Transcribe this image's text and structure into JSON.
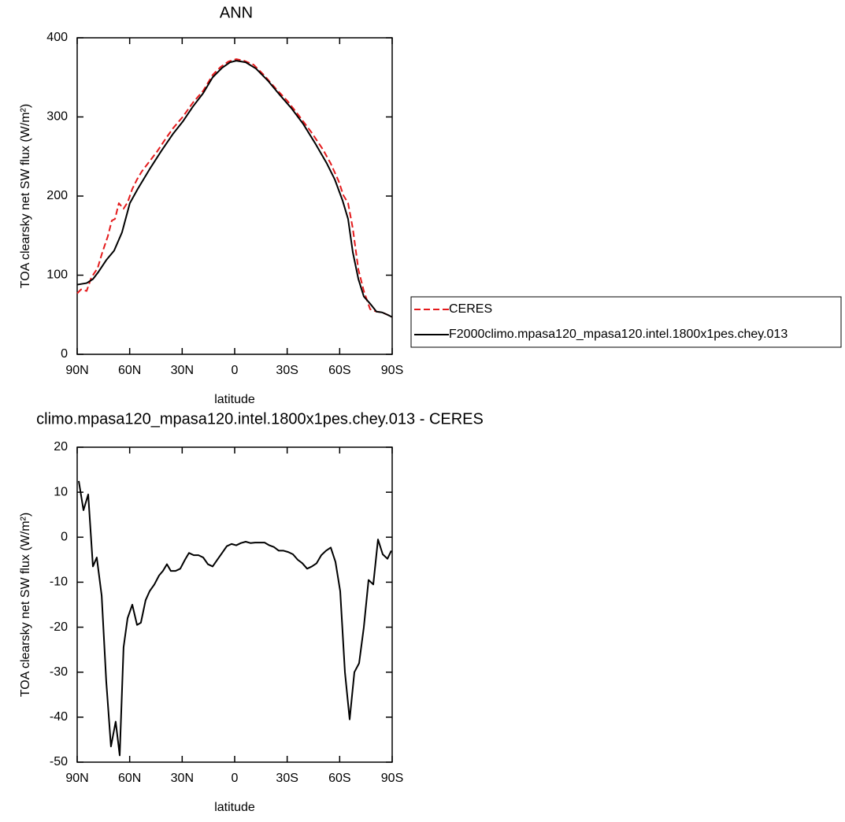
{
  "chart_data": [
    {
      "type": "line",
      "title": "ANN",
      "x_label": "latitude",
      "y_label": "TOA clearsky net SW flux (W/m²)",
      "xlim": [
        90,
        -90
      ],
      "ylim": [
        0,
        400
      ],
      "xticks": [
        {
          "value": 90,
          "label": "90N"
        },
        {
          "value": 60,
          "label": "60N"
        },
        {
          "value": 30,
          "label": "30N"
        },
        0,
        {
          "value": -30,
          "label": "30S"
        },
        {
          "value": -60,
          "label": "60S"
        },
        {
          "value": -90,
          "label": "90S"
        }
      ],
      "yticks": [
        0,
        100,
        200,
        300,
        400
      ],
      "legend_position": "right",
      "series": [
        {
          "name": "CERES",
          "color": "#e41a1c",
          "dashed": true,
          "x": [
            90,
            87.8,
            84.6,
            81.9,
            78.3,
            75.6,
            72.5,
            70.2,
            68.4,
            66.2,
            63.5,
            61.2,
            58.5,
            55.8,
            53.1,
            48.6,
            44.1,
            39.6,
            35.1,
            29.7,
            23.9,
            18,
            12.6,
            8.1,
            3.6,
            -0.9,
            -5.4,
            -10.8,
            -16.7,
            -23.4,
            -30.2,
            -36.9,
            -43.7,
            -50.4,
            -54.9,
            -59.4,
            -62.1,
            -64.8,
            -67.5,
            -70.7,
            -73.8,
            -77.4,
            -81,
            -84.2,
            -87.3,
            -90
          ],
          "values": [
            77,
            82,
            80,
            97,
            109,
            129,
            149,
            169,
            171,
            191,
            184,
            192,
            209,
            221,
            231,
            244,
            257,
            272,
            286,
            300,
            318,
            333,
            353,
            363,
            370,
            373,
            371,
            366,
            353,
            336,
            320,
            301,
            281,
            259,
            241,
            219,
            201,
            191,
            159,
            107,
            80,
            57,
            54,
            53,
            50,
            47
          ]
        },
        {
          "name": "F2000climo.mpasa120_mpasa120.intel.1800x1pes.chey.013",
          "color": "#000000",
          "dashed": false,
          "x": [
            90,
            84.6,
            81,
            77.9,
            73.4,
            68.9,
            64.4,
            59.9,
            55.4,
            48.6,
            41.9,
            35.1,
            29.7,
            23.9,
            18,
            12.6,
            7.2,
            2.7,
            -0.9,
            -6.3,
            -12.2,
            -18.9,
            -25.7,
            -32.4,
            -39.2,
            -45.9,
            -52.7,
            -57.2,
            -61.7,
            -64.8,
            -67.5,
            -70.7,
            -73.8,
            -77.4,
            -81,
            -84.2,
            -87.3,
            -90
          ],
          "values": [
            88,
            90,
            95,
            104,
            119,
            131,
            154,
            191,
            209,
            234,
            257,
            279,
            294,
            313,
            330,
            350,
            362,
            369,
            371,
            369,
            361,
            346,
            328,
            311,
            291,
            267,
            241,
            221,
            194,
            171,
            129,
            95,
            73,
            64,
            54,
            53,
            50,
            47
          ]
        }
      ]
    },
    {
      "type": "line",
      "title": "climo.mpasa120_mpasa120.intel.1800x1pes.chey.013 - CERES",
      "x_label": "latitude",
      "y_label": "TOA clearsky net SW flux (W/m²)",
      "xlim": [
        90,
        -90
      ],
      "ylim": [
        -50,
        20
      ],
      "xticks": [
        {
          "value": 90,
          "label": "90N"
        },
        {
          "value": 60,
          "label": "60N"
        },
        {
          "value": 30,
          "label": "30N"
        },
        0,
        {
          "value": -30,
          "label": "30S"
        },
        {
          "value": -60,
          "label": "60S"
        },
        {
          "value": -90,
          "label": "90S"
        }
      ],
      "yticks": [
        -50,
        -40,
        -30,
        -20,
        -10,
        0,
        10,
        20
      ],
      "color": "#000000",
      "x": [
        89.1,
        86.4,
        83.7,
        81,
        78.8,
        76,
        73.4,
        70.7,
        68,
        65.7,
        63.5,
        61.2,
        58.5,
        55.8,
        53.6,
        50.9,
        48.6,
        45.9,
        43.2,
        41,
        38.7,
        36.5,
        33.8,
        31.1,
        28.4,
        26.1,
        23.4,
        20.7,
        18,
        15.3,
        12.6,
        9.9,
        7.2,
        4.5,
        1.8,
        -0.9,
        -3.6,
        -6.3,
        -9,
        -11.7,
        -14.4,
        -17.1,
        -19.8,
        -22.5,
        -25.2,
        -27.9,
        -30.6,
        -33.3,
        -36,
        -38.7,
        -41.4,
        -44.1,
        -46.8,
        -49.5,
        -52.2,
        -54.9,
        -57.6,
        -60.3,
        -63,
        -65.7,
        -68.4,
        -71.1,
        -73.8,
        -76.5,
        -79.2,
        -81.9,
        -84.6,
        -87.3,
        -89.5
      ],
      "values": [
        12.5,
        6,
        9.5,
        -6.5,
        -4.5,
        -13,
        -32,
        -46.5,
        -41,
        -48.5,
        -24.5,
        -18,
        -15,
        -19.5,
        -19,
        -14,
        -12,
        -10.5,
        -8.5,
        -7.5,
        -6,
        -7.5,
        -7.5,
        -7,
        -5,
        -3.5,
        -4,
        -4,
        -4.5,
        -6,
        -6.5,
        -5,
        -3.5,
        -2,
        -1.5,
        -1.8,
        -1.3,
        -1,
        -1.3,
        -1.2,
        -1.2,
        -1.2,
        -1.8,
        -2.2,
        -3,
        -3,
        -3.3,
        -3.8,
        -5,
        -5.8,
        -7,
        -6.5,
        -5.8,
        -4,
        -3,
        -2.3,
        -5.5,
        -12,
        -30,
        -40.5,
        -30,
        -28,
        -20,
        -9.5,
        -10.5,
        -0.5,
        -3.8,
        -4.8,
        -3
      ]
    }
  ]
}
